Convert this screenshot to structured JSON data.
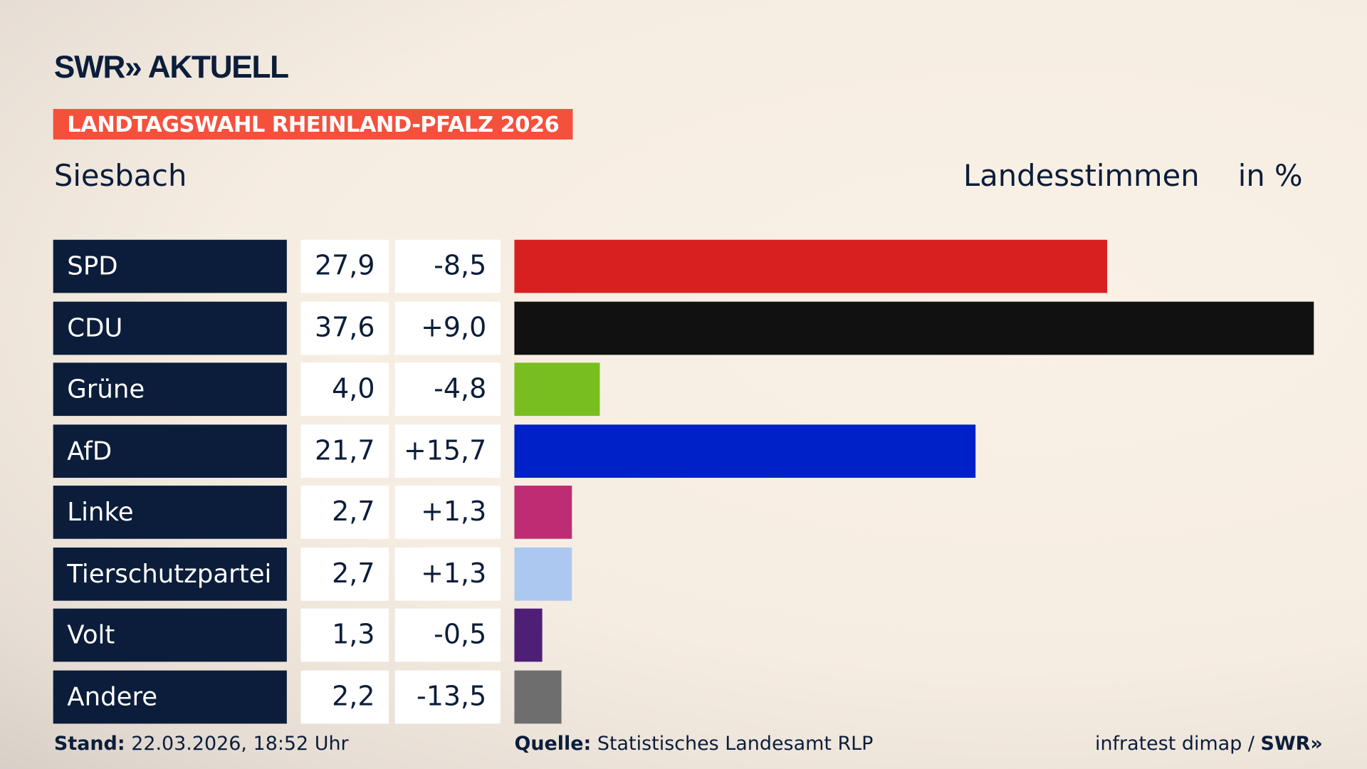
{
  "brand": {
    "logo": "SWR» AKTUELL",
    "footer_logo": "SWR»"
  },
  "badge": "LANDTAGSWAHL RHEINLAND-PFALZ 2026",
  "place": "Siesbach",
  "header": {
    "label": "Landesstimmen",
    "unit": "in %"
  },
  "chart_data": {
    "type": "bar",
    "orientation": "horizontal",
    "categories": [
      "SPD",
      "CDU",
      "Grüne",
      "AfD",
      "Linke",
      "Tierschutzpartei",
      "Volt",
      "Andere"
    ],
    "values": [
      27.9,
      37.6,
      4.0,
      21.7,
      2.7,
      2.7,
      1.3,
      2.2
    ],
    "value_labels": [
      "27,9",
      "37,6",
      "4,0",
      "21,7",
      "2,7",
      "2,7",
      "1,3",
      "2,2"
    ],
    "diff_labels": [
      "-8,5",
      "+9,0",
      "-4,8",
      "+15,7",
      "+1,3",
      "+1,3",
      "-0,5",
      "-13,5"
    ],
    "colors": [
      "#d82020",
      "#111111",
      "#78be1e",
      "#0020c8",
      "#be2d73",
      "#adc8f0",
      "#4f1f78",
      "#6e6e6e"
    ],
    "xlim": [
      0,
      37.6
    ]
  },
  "footer": {
    "stand_label": "Stand:",
    "stand": "22.03.2026, 18:52 Uhr",
    "source_label": "Quelle:",
    "source": "Statistisches Landesamt RLP",
    "credit": "infratest dimap /"
  }
}
